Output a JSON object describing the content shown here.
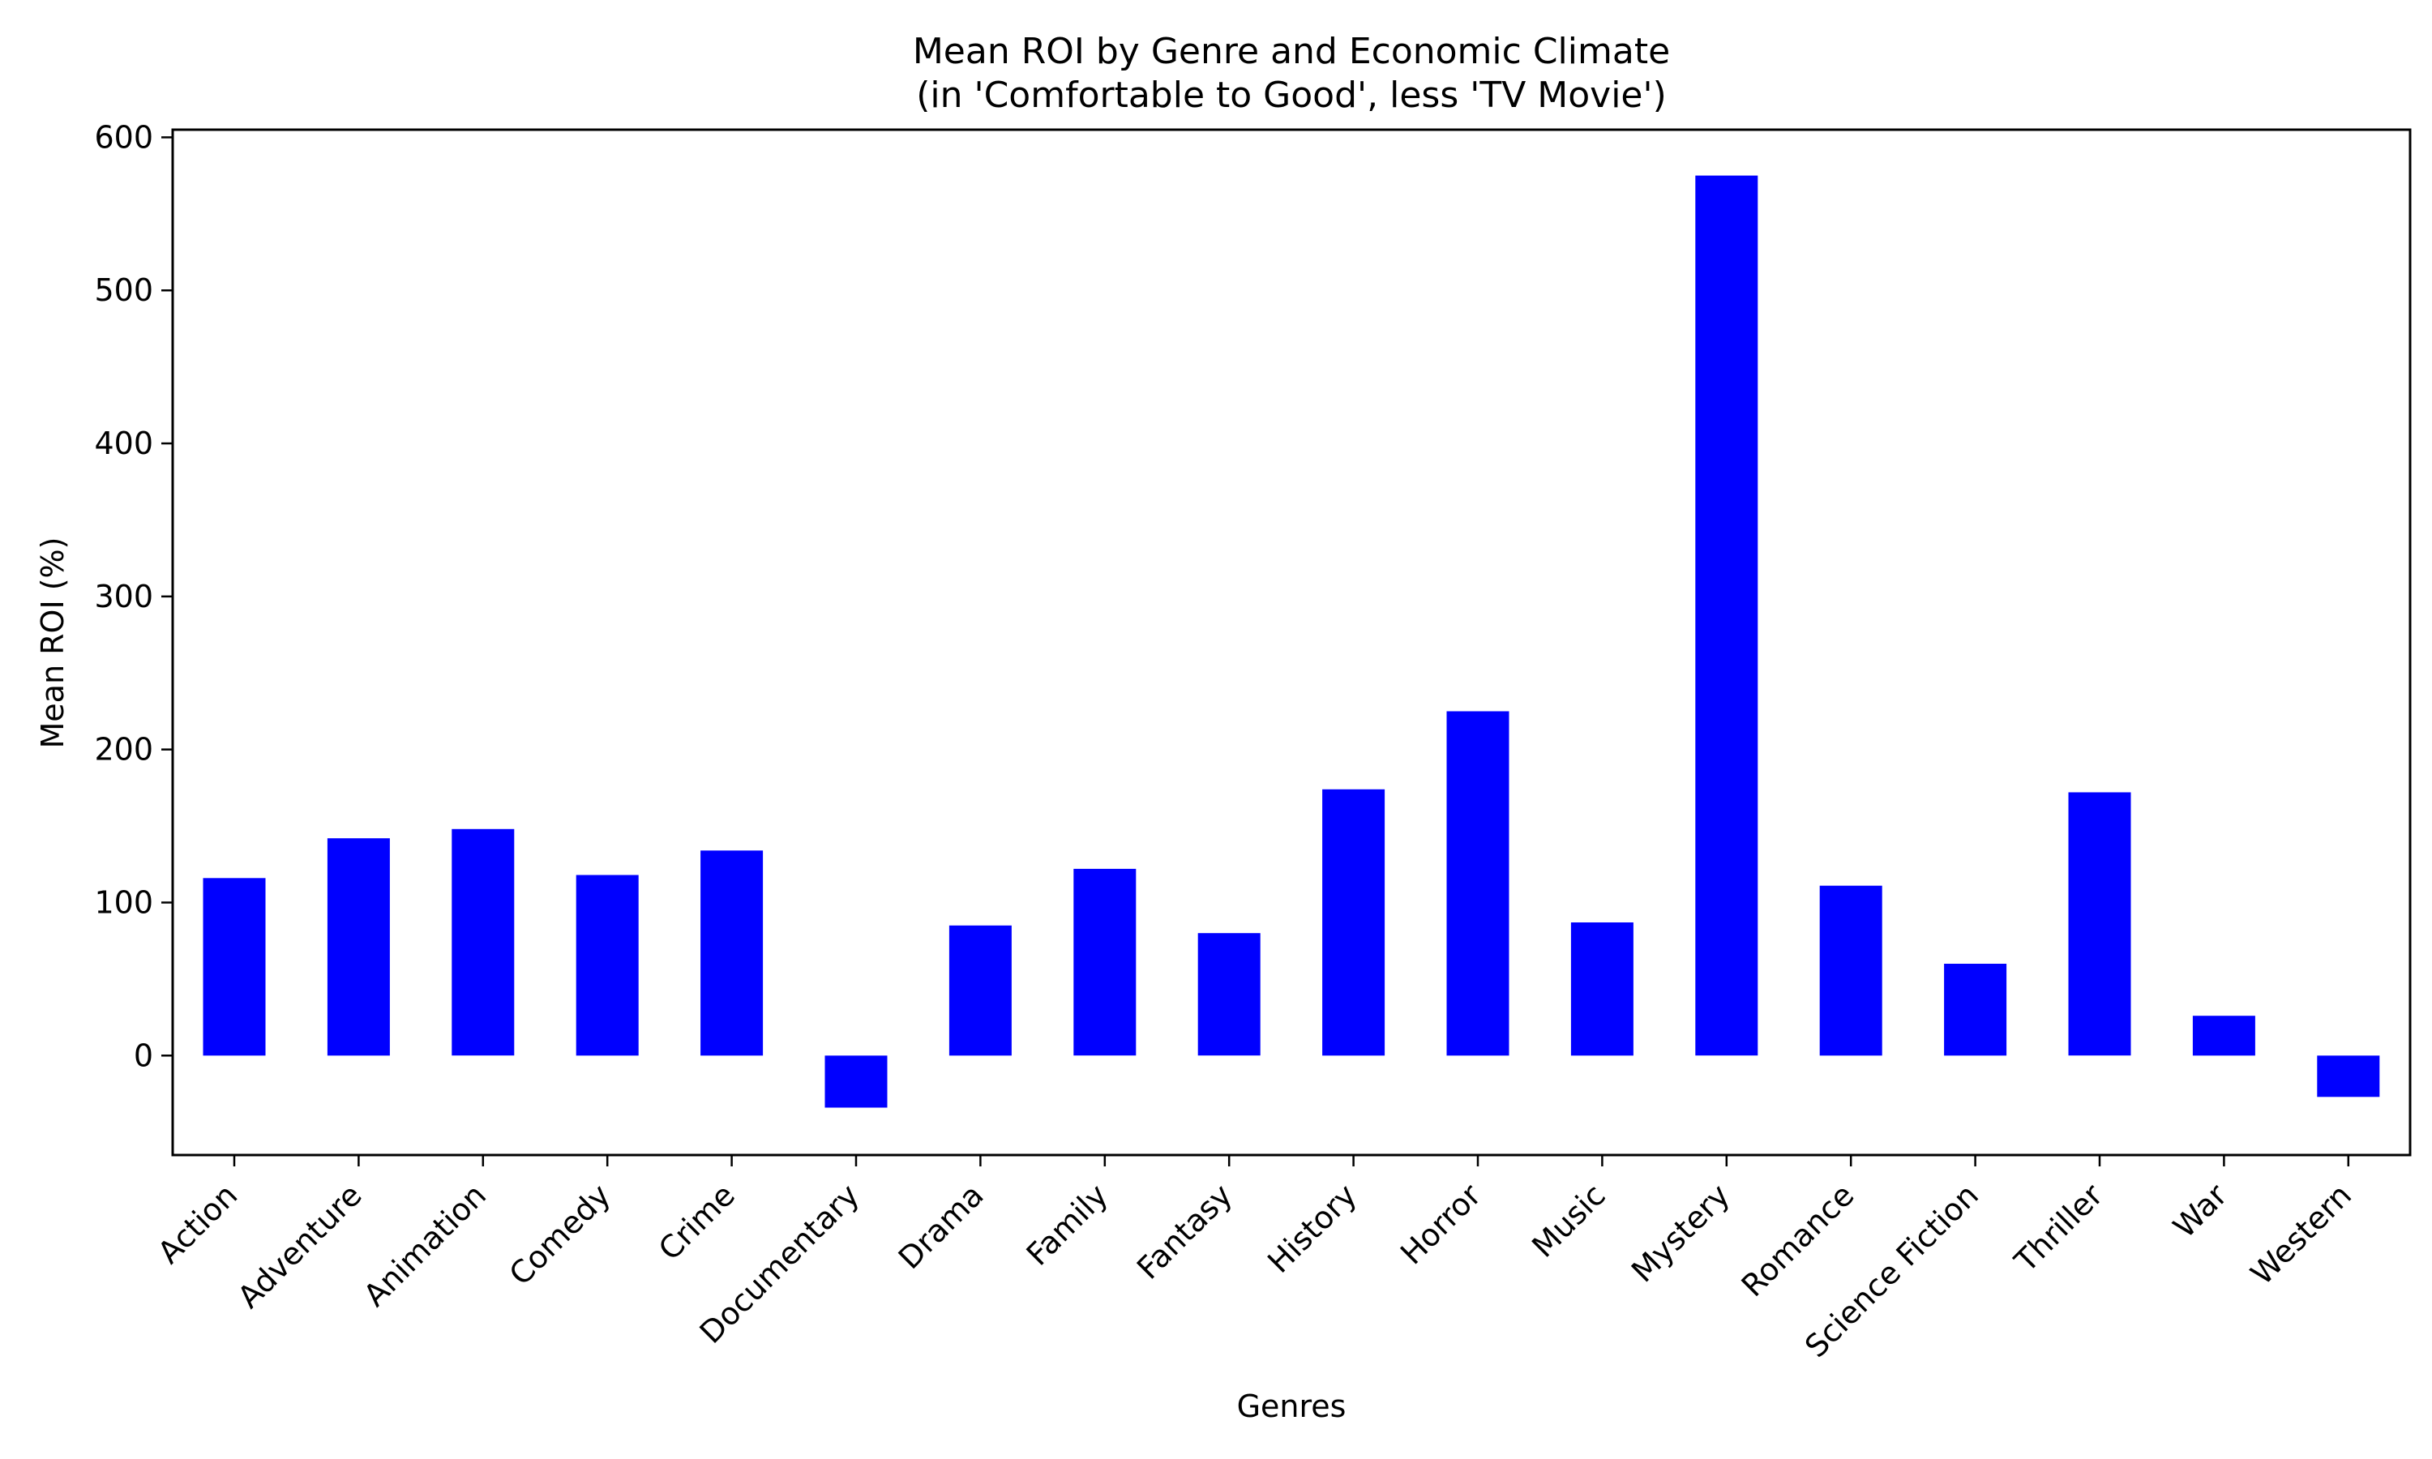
{
  "chart_data": {
    "type": "bar",
    "title": "Mean ROI by Genre and Economic Climate",
    "subtitle": "(in 'Comfortable to Good', less 'TV Movie')",
    "xlabel": "Genres",
    "ylabel": "Mean ROI (%)",
    "ylim": [
      -65,
      605
    ],
    "yticks": [
      0,
      100,
      200,
      300,
      400,
      500,
      600
    ],
    "grid": false,
    "bar_color": "#0000ff",
    "categories": [
      "Action",
      "Adventure",
      "Animation",
      "Comedy",
      "Crime",
      "Documentary",
      "Drama",
      "Family",
      "Fantasy",
      "History",
      "Horror",
      "Music",
      "Mystery",
      "Romance",
      "Science Fiction",
      "Thriller",
      "War",
      "Western"
    ],
    "values": [
      116,
      142,
      148,
      118,
      134,
      -34,
      85,
      122,
      80,
      174,
      225,
      87,
      575,
      111,
      60,
      172,
      26,
      -27
    ]
  }
}
